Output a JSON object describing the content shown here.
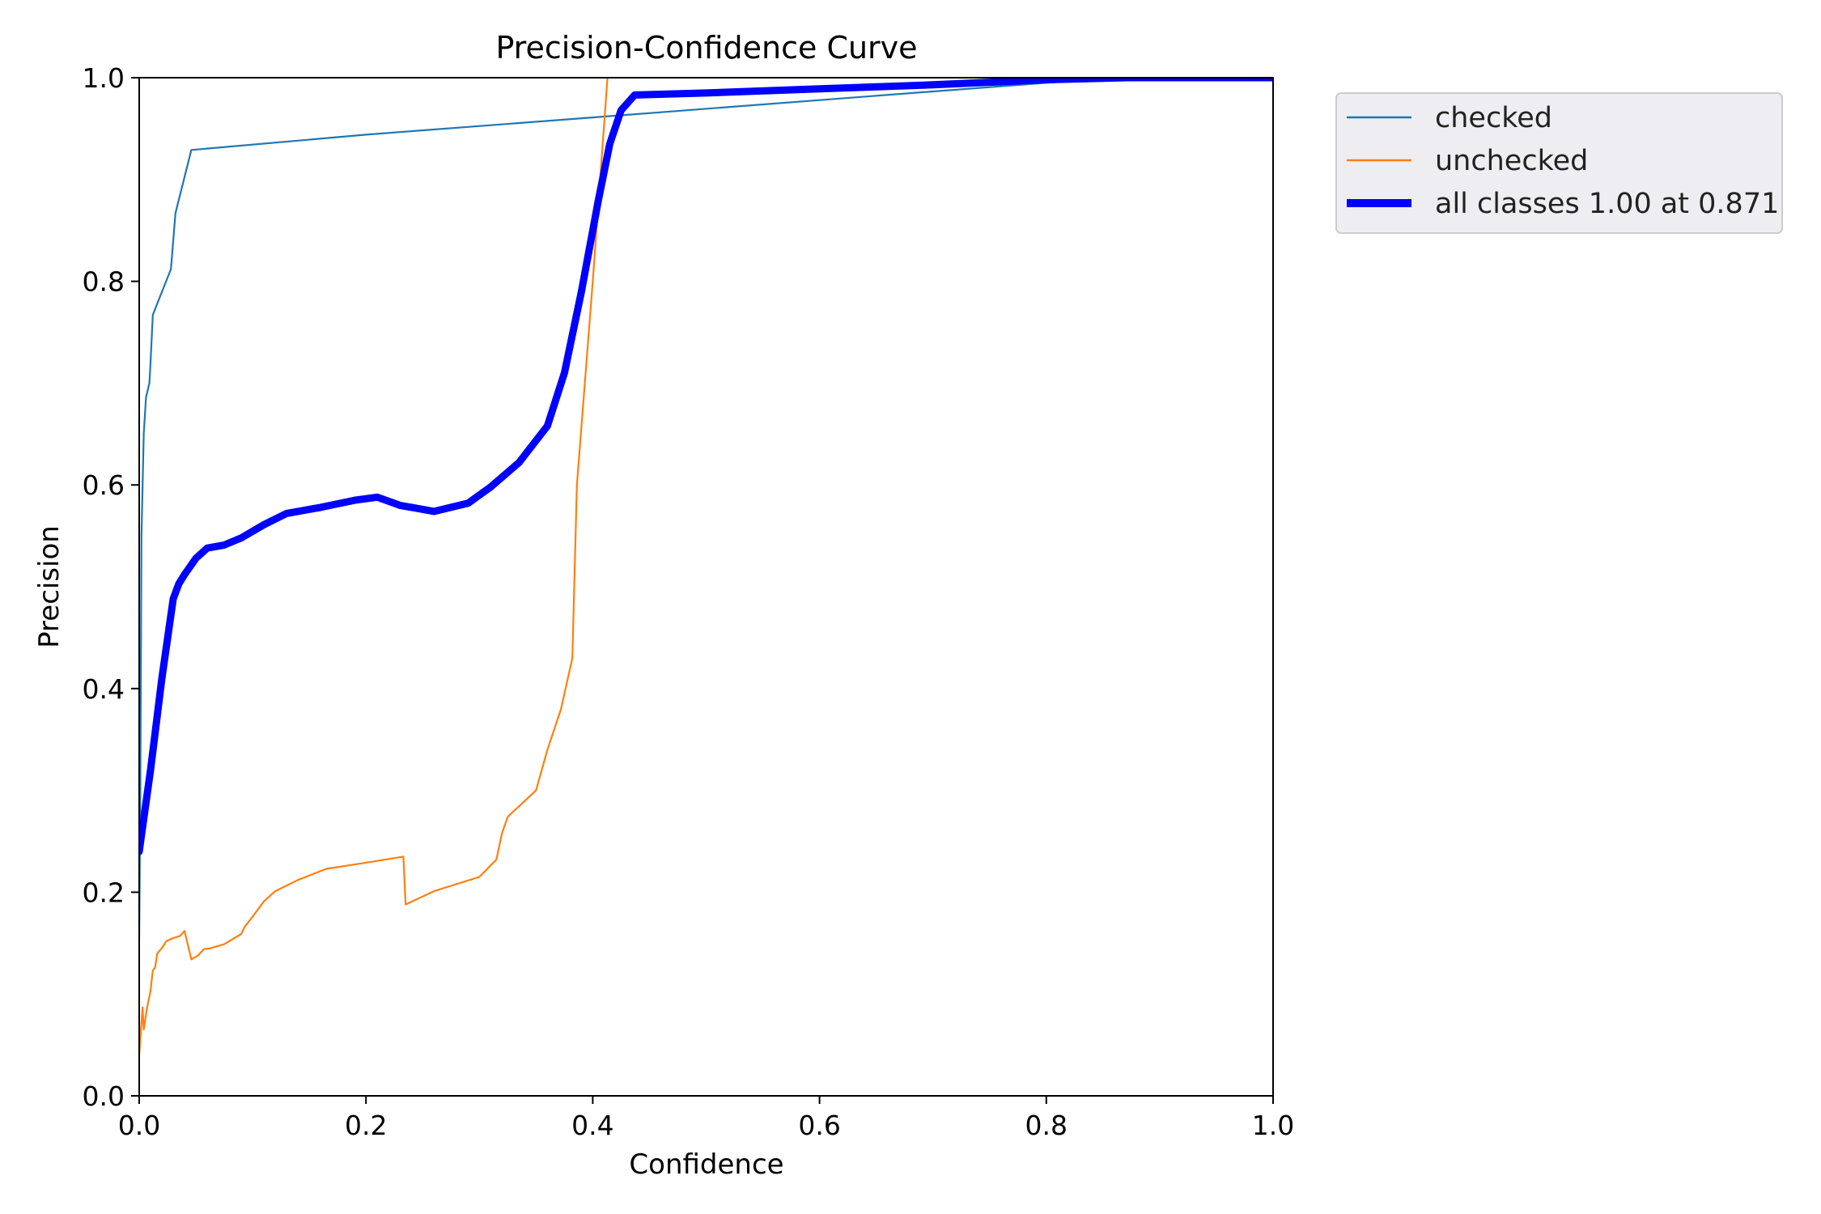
{
  "chart_data": {
    "type": "line",
    "title": "Precision-Confidence Curve",
    "xlabel": "Confidence",
    "ylabel": "Precision",
    "xlim": [
      0.0,
      1.0
    ],
    "ylim": [
      0.0,
      1.0
    ],
    "x_ticks": [
      "0.0",
      "0.2",
      "0.4",
      "0.6",
      "0.8",
      "1.0"
    ],
    "y_ticks": [
      "0.0",
      "0.2",
      "0.4",
      "0.6",
      "0.8",
      "1.0"
    ],
    "grid": false,
    "legend_position": "outside-upper-right",
    "series": [
      {
        "name": "checked",
        "color": "#1f77b4",
        "line_width": "thin",
        "points": [
          [
            0.0,
            0.155
          ],
          [
            0.001,
            0.3
          ],
          [
            0.002,
            0.55
          ],
          [
            0.004,
            0.65
          ],
          [
            0.006,
            0.686
          ],
          [
            0.009,
            0.7
          ],
          [
            0.01,
            0.72
          ],
          [
            0.012,
            0.767
          ],
          [
            0.028,
            0.812
          ],
          [
            0.032,
            0.867
          ],
          [
            0.046,
            0.929
          ],
          [
            0.2,
            0.944
          ],
          [
            0.4,
            0.961
          ],
          [
            0.6,
            0.978
          ],
          [
            0.8,
            0.995
          ],
          [
            0.86,
            1.0
          ],
          [
            1.0,
            1.0
          ]
        ]
      },
      {
        "name": "unchecked",
        "color": "#ff7f0e",
        "line_width": "thin",
        "points": [
          [
            0.0,
            0.04
          ],
          [
            0.003,
            0.087
          ],
          [
            0.004,
            0.065
          ],
          [
            0.007,
            0.087
          ],
          [
            0.01,
            0.103
          ],
          [
            0.012,
            0.123
          ],
          [
            0.014,
            0.126
          ],
          [
            0.016,
            0.14
          ],
          [
            0.02,
            0.145
          ],
          [
            0.024,
            0.152
          ],
          [
            0.03,
            0.155
          ],
          [
            0.036,
            0.157
          ],
          [
            0.04,
            0.162
          ],
          [
            0.046,
            0.134
          ],
          [
            0.052,
            0.138
          ],
          [
            0.057,
            0.144
          ],
          [
            0.063,
            0.145
          ],
          [
            0.075,
            0.149
          ],
          [
            0.09,
            0.159
          ],
          [
            0.093,
            0.166
          ],
          [
            0.1,
            0.176
          ],
          [
            0.11,
            0.191
          ],
          [
            0.12,
            0.201
          ],
          [
            0.14,
            0.212
          ],
          [
            0.165,
            0.223
          ],
          [
            0.2,
            0.229
          ],
          [
            0.233,
            0.235
          ],
          [
            0.235,
            0.188
          ],
          [
            0.26,
            0.201
          ],
          [
            0.3,
            0.215
          ],
          [
            0.315,
            0.232
          ],
          [
            0.32,
            0.258
          ],
          [
            0.325,
            0.274
          ],
          [
            0.35,
            0.3
          ],
          [
            0.36,
            0.34
          ],
          [
            0.372,
            0.38
          ],
          [
            0.382,
            0.43
          ],
          [
            0.386,
            0.6
          ],
          [
            0.4,
            0.8
          ],
          [
            0.413,
            1.0
          ]
        ]
      },
      {
        "name": "all classes 1.00 at 0.871",
        "color": "#0000ff",
        "line_width": "thick",
        "points": [
          [
            0.0,
            0.24
          ],
          [
            0.01,
            0.32
          ],
          [
            0.02,
            0.41
          ],
          [
            0.03,
            0.488
          ],
          [
            0.035,
            0.503
          ],
          [
            0.04,
            0.512
          ],
          [
            0.05,
            0.528
          ],
          [
            0.06,
            0.538
          ],
          [
            0.075,
            0.541
          ],
          [
            0.09,
            0.548
          ],
          [
            0.11,
            0.561
          ],
          [
            0.13,
            0.572
          ],
          [
            0.16,
            0.578
          ],
          [
            0.19,
            0.585
          ],
          [
            0.21,
            0.588
          ],
          [
            0.23,
            0.58
          ],
          [
            0.26,
            0.574
          ],
          [
            0.29,
            0.582
          ],
          [
            0.31,
            0.598
          ],
          [
            0.335,
            0.622
          ],
          [
            0.36,
            0.658
          ],
          [
            0.375,
            0.71
          ],
          [
            0.39,
            0.79
          ],
          [
            0.405,
            0.88
          ],
          [
            0.415,
            0.935
          ],
          [
            0.425,
            0.968
          ],
          [
            0.437,
            0.983
          ],
          [
            0.5,
            0.985
          ],
          [
            0.6,
            0.989
          ],
          [
            0.7,
            0.993
          ],
          [
            0.8,
            0.998
          ],
          [
            0.871,
            1.0
          ],
          [
            1.0,
            1.0
          ]
        ]
      }
    ]
  }
}
